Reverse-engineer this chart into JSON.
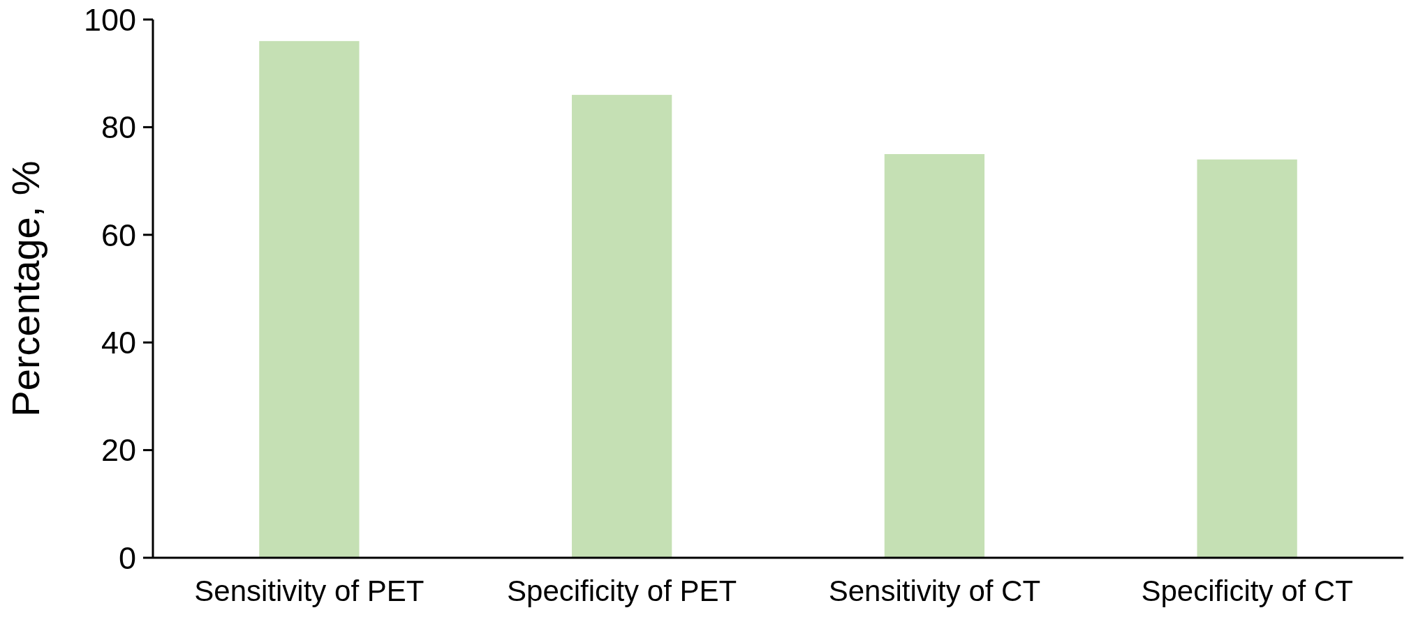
{
  "chart_data": {
    "type": "bar",
    "ylabel": "Percentage, %",
    "categories": [
      "Sensitivity of PET",
      "Specificity of PET",
      "Sensitivity of CT",
      "Specificity of CT"
    ],
    "values": [
      96,
      86,
      75,
      74
    ],
    "color": "#c5e0b4",
    "ylim": [
      0,
      100
    ],
    "yticks": [
      0,
      20,
      40,
      60,
      80,
      100
    ],
    "grid": false
  }
}
